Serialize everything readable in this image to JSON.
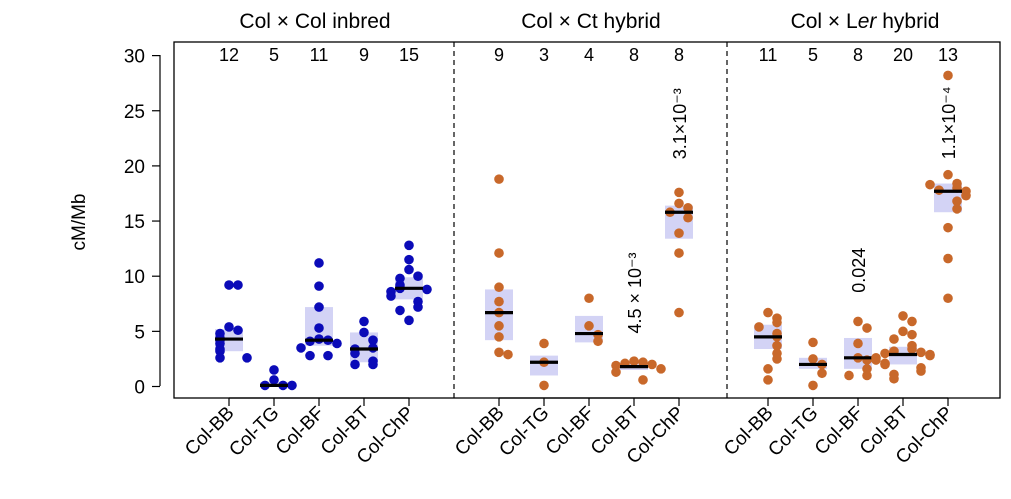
{
  "chart_data": {
    "type": "scatter",
    "ylabel": "cM/Mb",
    "ylim": [
      -1,
      31
    ],
    "yticks": [
      0,
      5,
      10,
      15,
      20,
      25,
      30
    ],
    "categories": [
      "Col-BB",
      "Col-TG",
      "Col-BF",
      "Col-BT",
      "Col-ChP"
    ],
    "colors": {
      "inbred": "#0b0bb8",
      "hybrid": "#c8682a",
      "iqr_box": "#d3d3f5",
      "median": "#000000"
    },
    "panels": [
      {
        "title": "Col × Col inbred",
        "color_key": "inbred",
        "groups": [
          {
            "category": "Col-BB",
            "n": "12",
            "median": 4.3,
            "q1": 3.2,
            "q3": 5.2,
            "points": [
              9.2,
              9.2,
              5.4,
              5.1,
              4.8,
              4.4,
              4.2,
              3.9,
              3.4,
              3.2,
              2.6,
              2.6
            ]
          },
          {
            "category": "Col-TG",
            "n": "5",
            "median": 0.1,
            "q1": 0.0,
            "q3": 0.4,
            "points": [
              1.5,
              0.6,
              0.1,
              0.1,
              0.1
            ]
          },
          {
            "category": "Col-BF",
            "n": "11",
            "median": 4.2,
            "q1": 3.7,
            "q3": 7.2,
            "points": [
              11.2,
              9.1,
              7.2,
              5.3,
              4.3,
              4.2,
              4.1,
              3.9,
              3.5,
              2.8,
              2.8
            ]
          },
          {
            "category": "Col-BT",
            "n": "9",
            "median": 3.4,
            "q1": 2.2,
            "q3": 4.9,
            "points": [
              5.9,
              4.9,
              4.2,
              3.5,
              3.4,
              3.0,
              2.3,
              2.0,
              2.0
            ]
          },
          {
            "category": "Col-ChP",
            "n": "15",
            "median": 8.9,
            "q1": 7.9,
            "q3": 9.9,
            "points": [
              12.8,
              11.5,
              10.6,
              10.0,
              9.8,
              9.2,
              9.0,
              8.9,
              8.8,
              8.6,
              8.2,
              7.7,
              7.2,
              6.9,
              6.0
            ]
          }
        ],
        "annotations": []
      },
      {
        "title": "Col × Ct hybrid",
        "color_key": "hybrid",
        "groups": [
          {
            "category": "Col-BB",
            "n": "9",
            "median": 6.7,
            "q1": 4.2,
            "q3": 8.8,
            "points": [
              18.8,
              12.1,
              9.0,
              7.7,
              6.7,
              5.5,
              4.5,
              3.1,
              2.9
            ]
          },
          {
            "category": "Col-TG",
            "n": "3",
            "median": 2.2,
            "q1": 1.0,
            "q3": 2.8,
            "points": [
              3.9,
              2.2,
              0.1
            ]
          },
          {
            "category": "Col-BF",
            "n": "4",
            "median": 4.8,
            "q1": 4.0,
            "q3": 6.4,
            "points": [
              8.0,
              5.5,
              4.7,
              4.1
            ]
          },
          {
            "category": "Col-BT",
            "n": "8",
            "median": 1.8,
            "q1": 1.5,
            "q3": 2.1,
            "points": [
              2.3,
              2.2,
              2.1,
              2.0,
              1.9,
              1.6,
              1.3,
              0.6
            ]
          },
          {
            "category": "Col-ChP",
            "n": "8",
            "median": 15.8,
            "q1": 13.4,
            "q3": 16.4,
            "points": [
              17.6,
              16.6,
              16.2,
              15.8,
              15.3,
              13.9,
              12.1,
              6.7
            ]
          }
        ],
        "annotations": [
          {
            "category": "Col-BT",
            "text": "4.5 × 10⁻³",
            "y_from": 4.8
          },
          {
            "category": "Col-ChP",
            "text": "3.1×10⁻³",
            "y_from": 20.6
          }
        ]
      },
      {
        "title": "Col × Ler hybrid",
        "title_parts": [
          "Col × L",
          "er",
          " hybrid"
        ],
        "color_key": "hybrid",
        "groups": [
          {
            "category": "Col-BB",
            "n": "11",
            "median": 4.5,
            "q1": 3.4,
            "q3": 5.6,
            "points": [
              6.7,
              6.2,
              5.8,
              5.4,
              4.8,
              4.5,
              3.7,
              3.0,
              2.5,
              1.6,
              0.6
            ]
          },
          {
            "category": "Col-TG",
            "n": "5",
            "median": 2.0,
            "q1": 1.6,
            "q3": 2.6,
            "points": [
              4.0,
              2.5,
              2.0,
              1.2,
              0.1
            ]
          },
          {
            "category": "Col-BF",
            "n": "8",
            "median": 2.6,
            "q1": 1.6,
            "q3": 4.4,
            "points": [
              5.9,
              5.3,
              3.9,
              2.6,
              2.4,
              1.6,
              1.0,
              1.0
            ]
          },
          {
            "category": "Col-BT",
            "n": "20",
            "median": 2.9,
            "q1": 2.0,
            "q3": 3.6,
            "points": [
              6.4,
              5.9,
              5.0,
              4.7,
              4.3,
              3.7,
              3.4,
              3.2,
              3.1,
              3.0,
              2.9,
              2.8,
              2.6,
              2.4,
              2.1,
              2.0,
              1.7,
              1.4,
              1.1,
              0.7
            ]
          },
          {
            "category": "Col-ChP",
            "n": "13",
            "median": 17.7,
            "q1": 15.8,
            "q3": 18.4,
            "points": [
              28.2,
              19.2,
              18.4,
              18.0,
              17.8,
              17.7,
              17.3,
              16.8,
              16.1,
              14.4,
              11.6,
              8.0,
              18.3
            ]
          }
        ],
        "annotations": [
          {
            "category": "Col-BF",
            "text": "0.024",
            "y_from": 8.5
          },
          {
            "category": "Col-ChP",
            "text": "1.1×10⁻⁴",
            "y_from": 20.6
          }
        ]
      }
    ]
  }
}
